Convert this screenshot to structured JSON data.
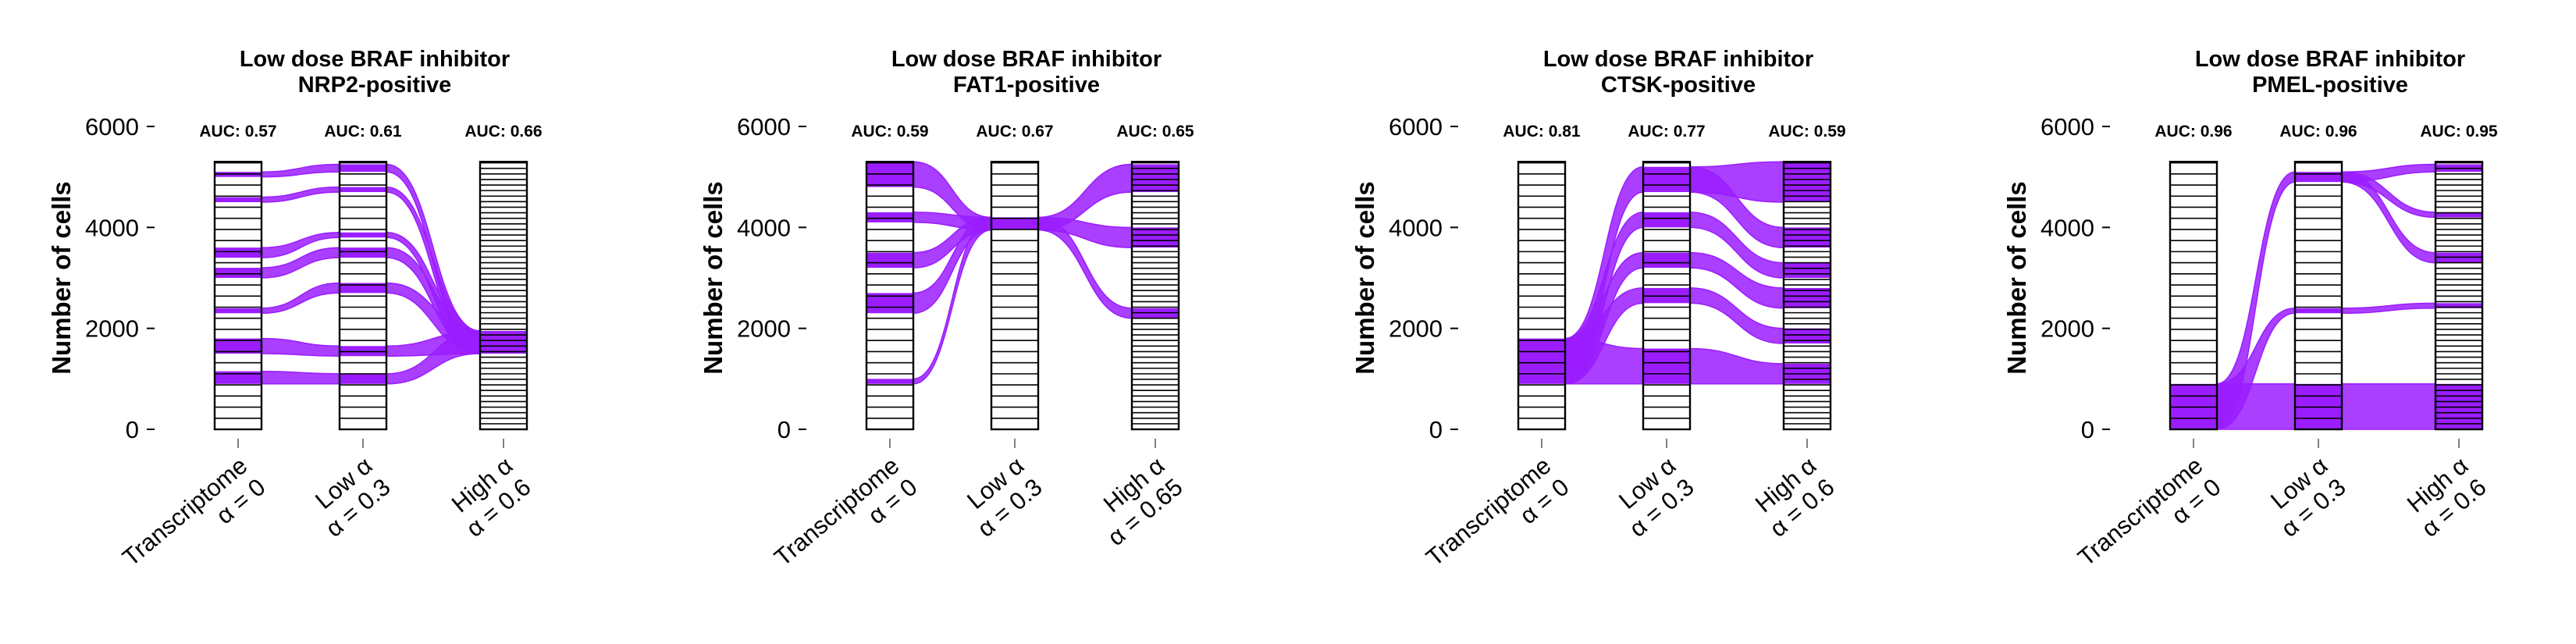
{
  "chart_data": [
    {
      "type": "alluvial",
      "title": [
        "Low dose BRAF inhibitor",
        "NRP2-positive"
      ],
      "ylabel": "Number of cells",
      "ylim": [
        0,
        6000
      ],
      "y_ticks": [
        0,
        2000,
        4000,
        6000
      ],
      "axes": [
        {
          "label": [
            "Transcriptome",
            "α = 0"
          ],
          "auc": "AUC: 0.57"
        },
        {
          "label": [
            "Low α",
            "α = 0.3"
          ],
          "auc": "AUC: 0.61"
        },
        {
          "label": [
            "High α",
            "α = 0.6"
          ],
          "auc": "AUC: 0.66"
        }
      ],
      "total_cells": 5300,
      "highlight_color": "#9b1dff",
      "highlight_ranges": [
        [
          [
            900,
            1150
          ],
          [
            1500,
            1800
          ],
          [
            2300,
            2400
          ],
          [
            3000,
            3200
          ],
          [
            3400,
            3600
          ],
          [
            4500,
            4600
          ],
          [
            5000,
            5100
          ]
        ],
        [
          [
            900,
            1100
          ],
          [
            1450,
            1650
          ],
          [
            2700,
            2900
          ],
          [
            3400,
            3600
          ],
          [
            3800,
            3900
          ],
          [
            4700,
            4800
          ],
          [
            5100,
            5250
          ]
        ],
        [
          [
            1500,
            1950
          ]
        ]
      ]
    },
    {
      "type": "alluvial",
      "title": [
        "Low dose BRAF inhibitor",
        "FAT1-positive"
      ],
      "ylabel": "Number of cells",
      "ylim": [
        0,
        6000
      ],
      "y_ticks": [
        0,
        2000,
        4000,
        6000
      ],
      "axes": [
        {
          "label": [
            "Transcriptome",
            "α = 0"
          ],
          "auc": "AUC: 0.59"
        },
        {
          "label": [
            "Low α",
            "α = 0.3"
          ],
          "auc": "AUC: 0.67"
        },
        {
          "label": [
            "High α",
            "α = 0.65"
          ],
          "auc": "AUC: 0.65"
        }
      ],
      "total_cells": 5300,
      "highlight_color": "#9b1dff",
      "highlight_ranges": [
        [
          [
            900,
            1000
          ],
          [
            2300,
            2700
          ],
          [
            3200,
            3500
          ],
          [
            4100,
            4300
          ],
          [
            4800,
            5300
          ]
        ],
        [
          [
            3950,
            4200
          ]
        ],
        [
          [
            2200,
            2400
          ],
          [
            3600,
            4000
          ],
          [
            4700,
            5250
          ]
        ]
      ]
    },
    {
      "type": "alluvial",
      "title": [
        "Low dose BRAF inhibitor",
        "CTSK-positive"
      ],
      "ylabel": "Number of cells",
      "ylim": [
        0,
        6000
      ],
      "y_ticks": [
        0,
        2000,
        4000,
        6000
      ],
      "axes": [
        {
          "label": [
            "Transcriptome",
            "α = 0"
          ],
          "auc": "AUC: 0.81"
        },
        {
          "label": [
            "Low α",
            "α = 0.3"
          ],
          "auc": "AUC: 0.77"
        },
        {
          "label": [
            "High α",
            "α = 0.6"
          ],
          "auc": "AUC: 0.59"
        }
      ],
      "total_cells": 5300,
      "highlight_color": "#9b1dff",
      "highlight_ranges": [
        [
          [
            900,
            1800
          ]
        ],
        [
          [
            900,
            1600
          ],
          [
            2500,
            2800
          ],
          [
            3200,
            3500
          ],
          [
            4000,
            4300
          ],
          [
            4700,
            5200
          ]
        ],
        [
          [
            900,
            1300
          ],
          [
            1700,
            2000
          ],
          [
            2400,
            2800
          ],
          [
            3000,
            3300
          ],
          [
            3600,
            4000
          ],
          [
            4500,
            5300
          ]
        ]
      ]
    },
    {
      "type": "alluvial",
      "title": [
        "Low dose BRAF inhibitor",
        "PMEL-positive"
      ],
      "ylabel": "Number of cells",
      "ylim": [
        0,
        6000
      ],
      "y_ticks": [
        0,
        2000,
        4000,
        6000
      ],
      "axes": [
        {
          "label": [
            "Transcriptome",
            "α = 0"
          ],
          "auc": "AUC: 0.96"
        },
        {
          "label": [
            "Low α",
            "α = 0.3"
          ],
          "auc": "AUC: 0.96"
        },
        {
          "label": [
            "High α",
            "α = 0.6"
          ],
          "auc": "AUC: 0.95"
        }
      ],
      "total_cells": 5300,
      "highlight_color": "#9b1dff",
      "highlight_ranges": [
        [
          [
            0,
            900
          ]
        ],
        [
          [
            0,
            900
          ],
          [
            2300,
            2400
          ],
          [
            4900,
            5100
          ]
        ],
        [
          [
            0,
            900
          ],
          [
            2400,
            2500
          ],
          [
            3300,
            3500
          ],
          [
            4200,
            4300
          ],
          [
            5100,
            5250
          ]
        ]
      ]
    }
  ]
}
